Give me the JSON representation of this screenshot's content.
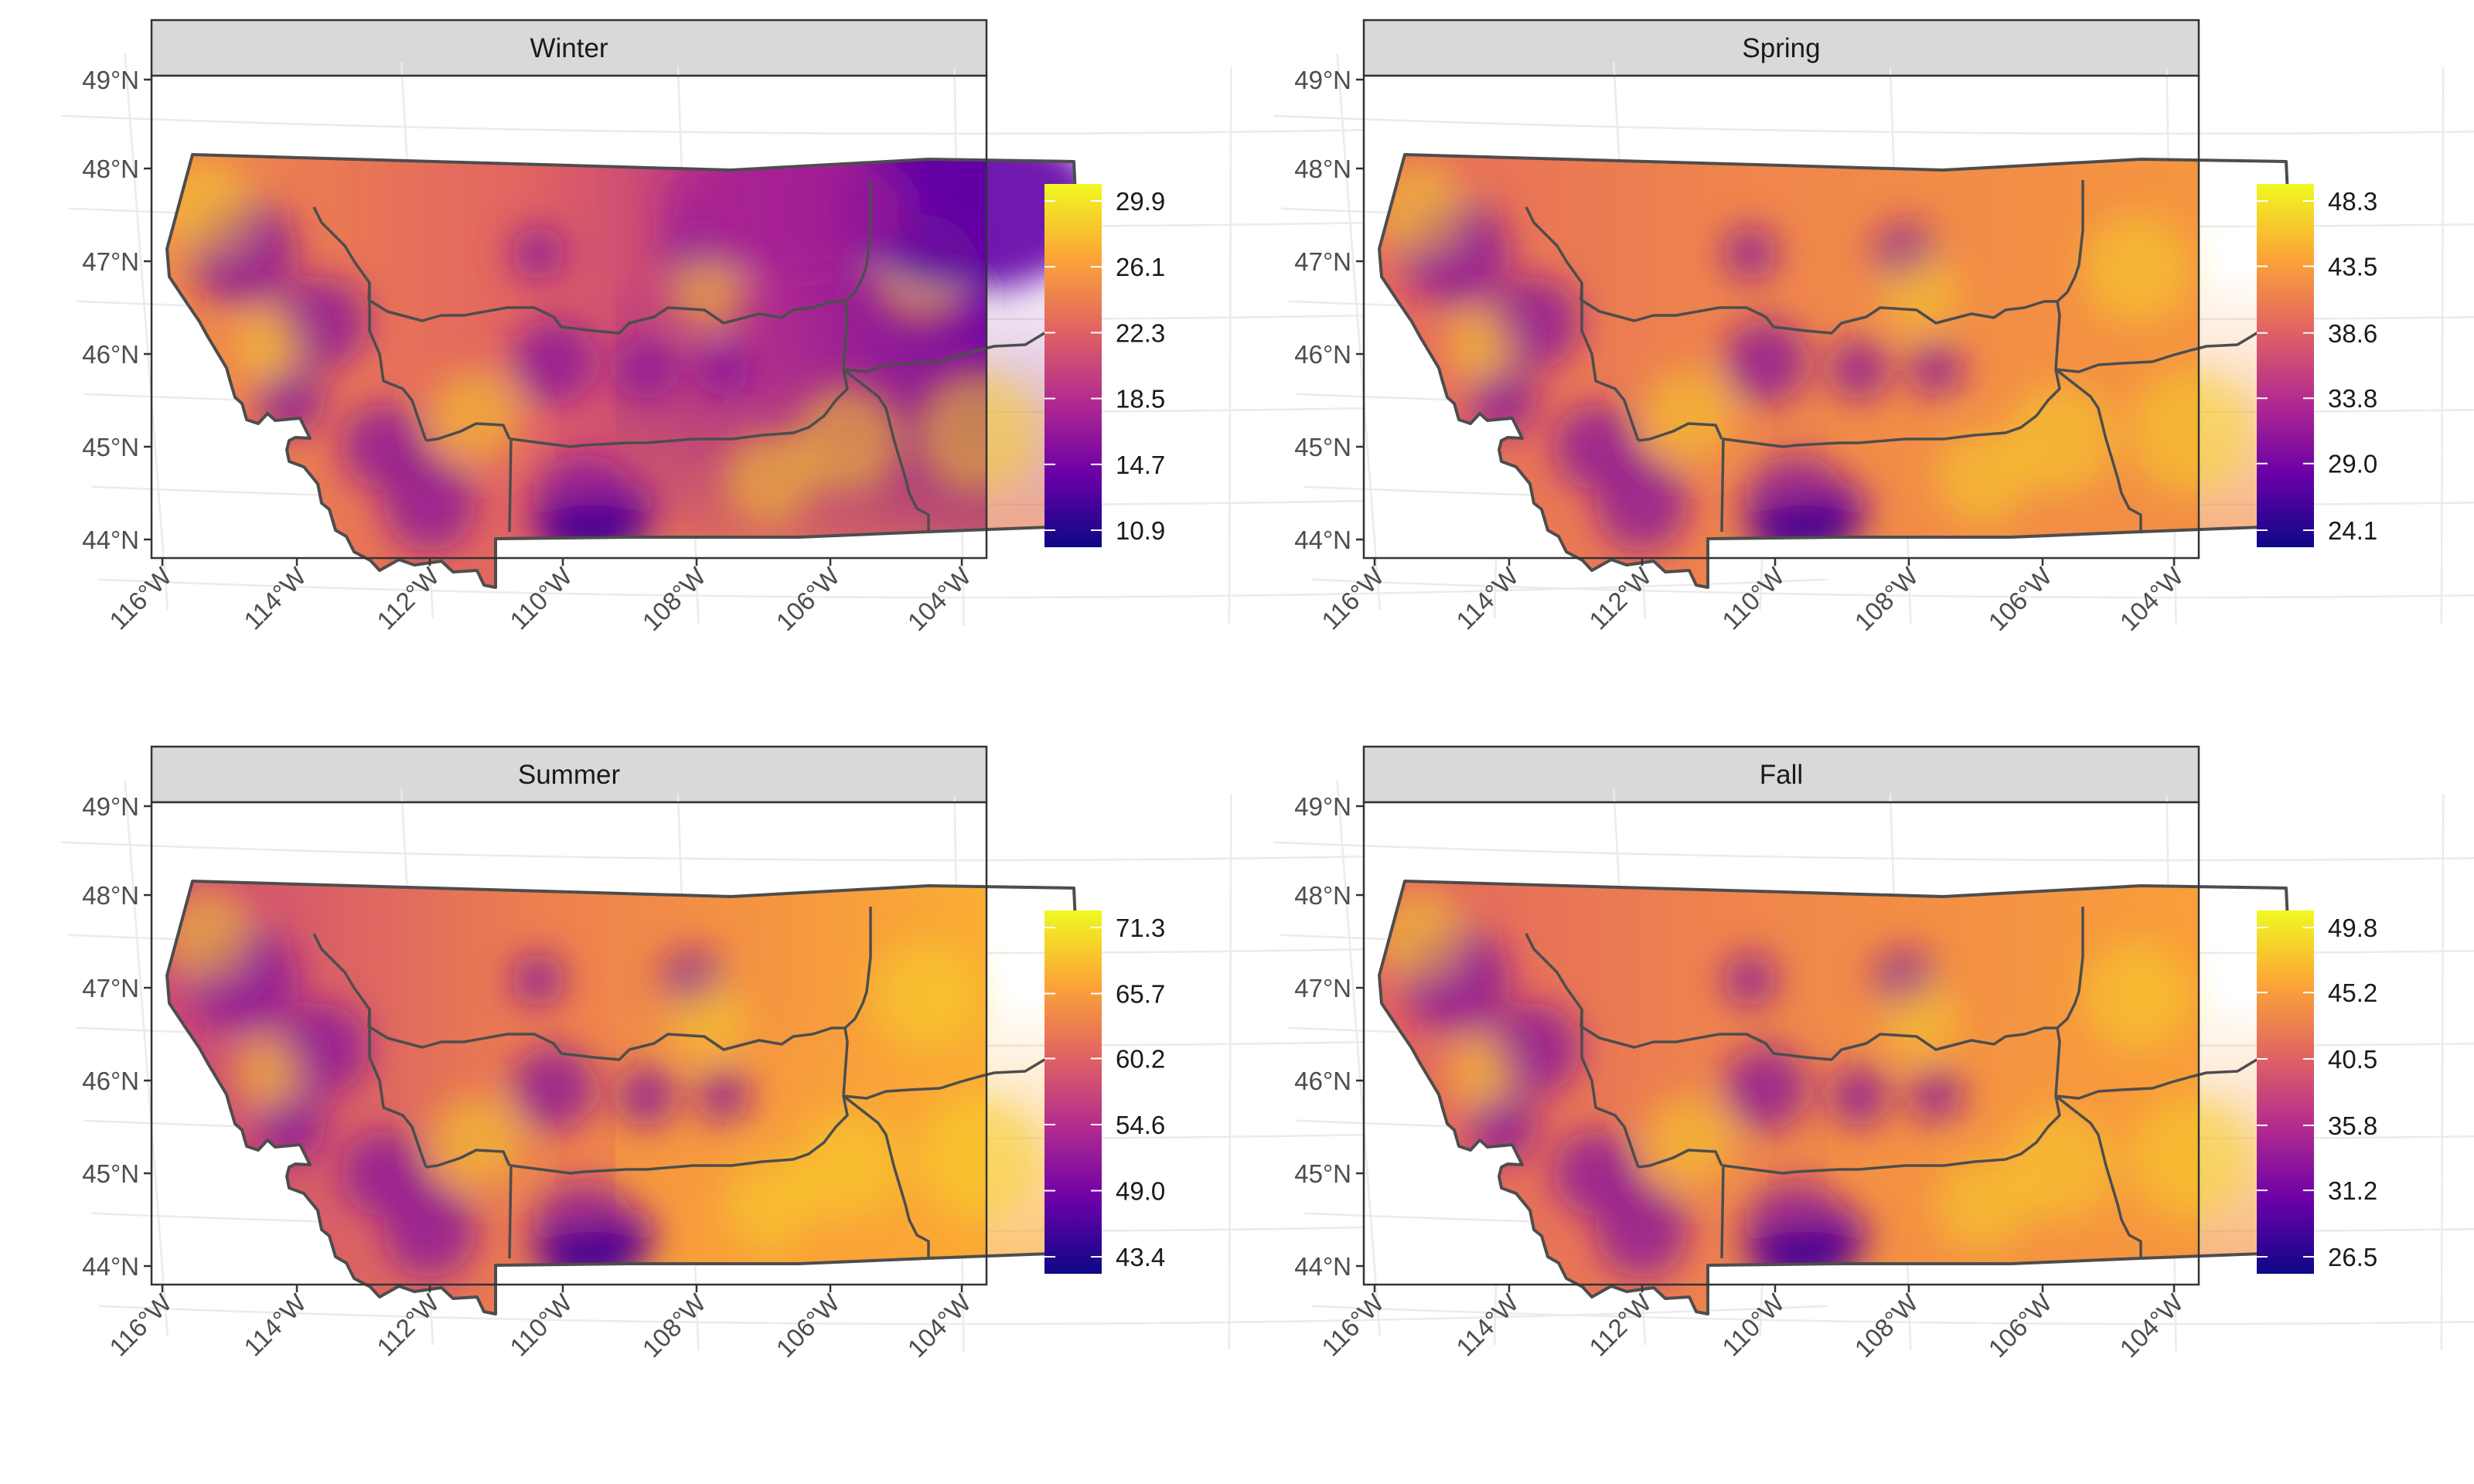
{
  "chart_data": {
    "type": "heatmap",
    "map": "Montana climate divisions",
    "axes": {
      "lat_ticks": [
        "44°N",
        "45°N",
        "46°N",
        "47°N",
        "48°N",
        "49°N"
      ],
      "lon_ticks": [
        "116°W",
        "114°W",
        "112°W",
        "110°W",
        "108°W",
        "106°W",
        "104°W"
      ]
    },
    "colormap": [
      "#0d0887",
      "#6a00a8",
      "#b12a90",
      "#e16462",
      "#fca636",
      "#f0f921"
    ],
    "panels": [
      {
        "title": "Winter",
        "legend": {
          "min": 10.9,
          "max": 29.9,
          "labels": [
            "29.9",
            "26.1",
            "22.3",
            "18.5",
            "14.7",
            "10.9"
          ]
        },
        "pattern": {
          "west_high": 0.72,
          "ne_low": 0.22,
          "central": 0.6,
          "south": 0.7
        }
      },
      {
        "title": "Spring",
        "legend": {
          "min": 24.1,
          "max": 48.3,
          "labels": [
            "48.3",
            "43.5",
            "38.6",
            "33.8",
            "29.0",
            "24.1"
          ]
        },
        "pattern": {
          "west_high": 0.62,
          "ne_low": 0.75,
          "central": 0.7,
          "south": 0.72
        }
      },
      {
        "title": "Summer",
        "legend": {
          "min": 43.4,
          "max": 71.3,
          "labels": [
            "71.3",
            "65.7",
            "60.2",
            "54.6",
            "49.0",
            "43.4"
          ]
        },
        "pattern": {
          "west_high": 0.5,
          "ne_low": 0.82,
          "central": 0.68,
          "south": 0.8
        }
      },
      {
        "title": "Fall",
        "legend": {
          "min": 26.5,
          "max": 49.8,
          "labels": [
            "49.8",
            "45.2",
            "40.5",
            "35.8",
            "31.2",
            "26.5"
          ]
        },
        "pattern": {
          "west_high": 0.6,
          "ne_low": 0.78,
          "central": 0.7,
          "south": 0.74
        }
      }
    ]
  }
}
